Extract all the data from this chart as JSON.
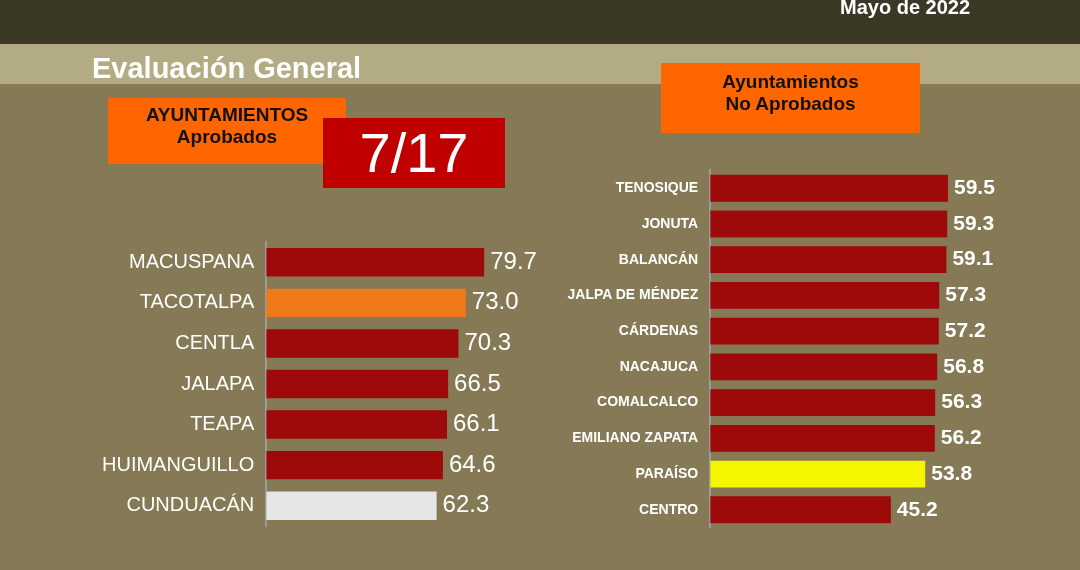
{
  "chart_data": [
    {
      "type": "bar",
      "orientation": "horizontal",
      "title": "Evaluación General",
      "subtitle": "AYUNTAMIENTOS\nAprobados",
      "annotations": [
        "Mayo de 2022",
        "7/17"
      ],
      "categories": [
        "MACUSPANA",
        "TACOTALPA",
        "CENTLA",
        "JALAPA",
        "TEAPA",
        "HUIMANGUILLO",
        "CUNDUACÁN"
      ],
      "values": [
        79.7,
        73.0,
        70.3,
        66.5,
        66.1,
        64.6,
        62.3
      ],
      "value_labels": [
        "79.7",
        "73.0",
        "70.3",
        "66.5",
        "66.1",
        "64.6",
        "62.3"
      ],
      "colors": [
        "#9e0a0a",
        "#f07a1a",
        "#9e0a0a",
        "#9e0a0a",
        "#9e0a0a",
        "#9e0a0a",
        "#e6e6e6"
      ],
      "tick_labels": "y",
      "grid": false,
      "legend": false
    },
    {
      "type": "bar",
      "orientation": "horizontal",
      "title": "Ayuntamientos\nNo Aprobados",
      "categories": [
        "TENOSIQUE",
        "JONUTA",
        "BALANCÁN",
        "JALPA DE MÉNDEZ",
        "CÁRDENAS",
        "NACAJUCA",
        "COMALCALCO",
        "EMILIANO ZAPATA",
        "PARAÍSO",
        "CENTRO"
      ],
      "values": [
        59.5,
        59.3,
        59.1,
        57.3,
        57.2,
        56.8,
        56.3,
        56.2,
        53.8,
        45.2
      ],
      "value_labels": [
        "59.5",
        "59.3",
        "59.1",
        "57.3",
        "57.2",
        "56.8",
        "56.3",
        "56.2",
        "53.8",
        "45.2"
      ],
      "colors": [
        "#9e0a0a",
        "#9e0a0a",
        "#9e0a0a",
        "#9e0a0a",
        "#9e0a0a",
        "#9e0a0a",
        "#9e0a0a",
        "#9e0a0a",
        "#f5f500",
        "#9e0a0a"
      ],
      "tick_labels": "y",
      "grid": false,
      "legend": false
    }
  ]
}
